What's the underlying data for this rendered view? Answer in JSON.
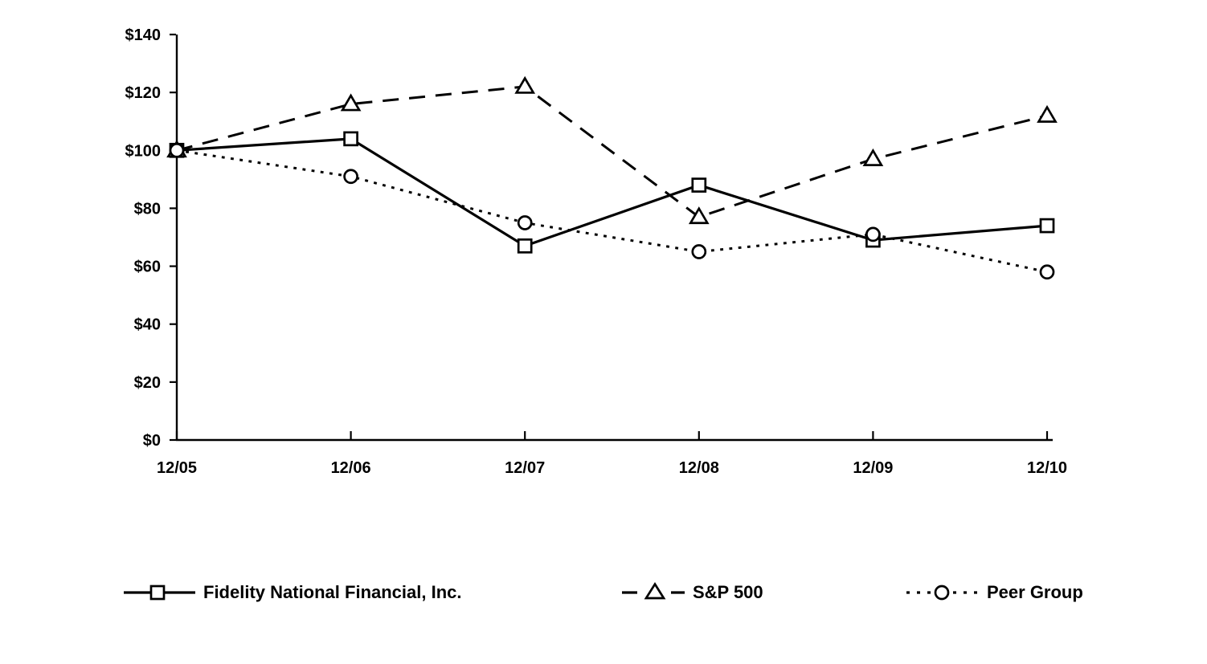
{
  "chart_data": {
    "type": "line",
    "title": "",
    "categories": [
      "12/05",
      "12/06",
      "12/07",
      "12/08",
      "12/09",
      "12/10"
    ],
    "series": [
      {
        "name": "Fidelity National Financial, Inc.",
        "marker": "square",
        "line_style": "solid",
        "values": [
          100,
          104,
          67,
          88,
          69,
          74
        ]
      },
      {
        "name": "S&P 500",
        "marker": "triangle",
        "line_style": "dashed",
        "values": [
          100,
          116,
          122,
          77,
          97,
          112
        ]
      },
      {
        "name": "Peer Group",
        "marker": "circle",
        "line_style": "dotted",
        "values": [
          100,
          91,
          75,
          65,
          71,
          58
        ]
      }
    ],
    "y_tick_labels": [
      "$140",
      "$120",
      "$100",
      "$80",
      "$60",
      "$40",
      "$20",
      "$0"
    ],
    "y_tick_values": [
      140,
      120,
      100,
      80,
      60,
      40,
      20,
      0
    ],
    "ylim": [
      0,
      140
    ],
    "grid": false,
    "legend_position": "bottom",
    "line_color": "#000000",
    "background_color": "#ffffff"
  }
}
